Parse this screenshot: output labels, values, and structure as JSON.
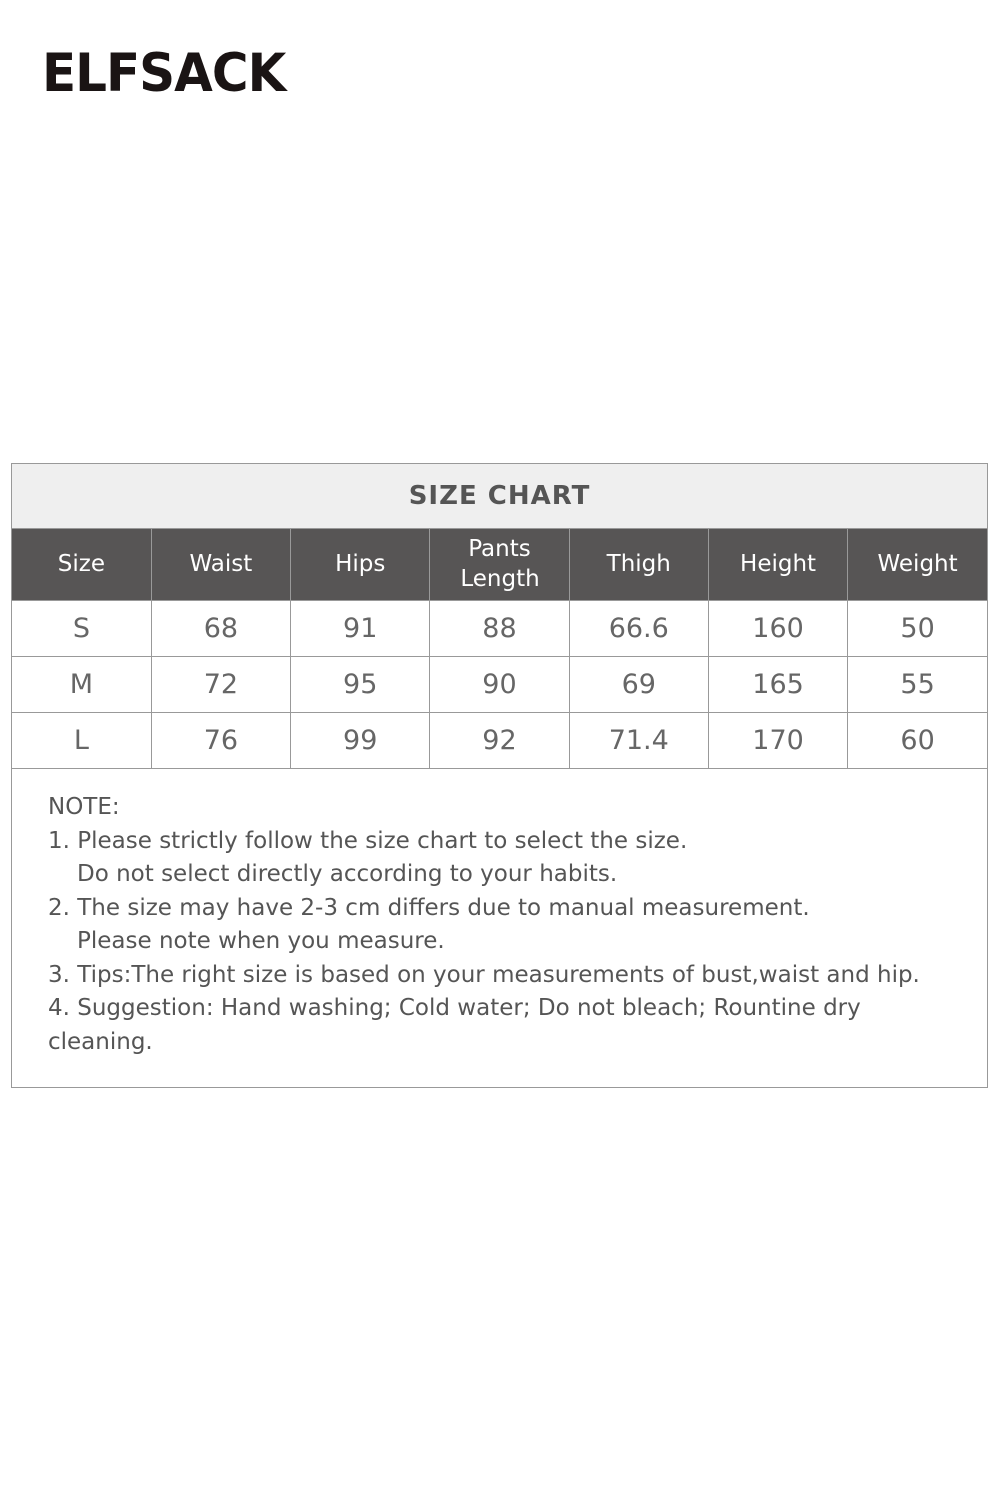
{
  "brand": {
    "logo": "ELFSACK"
  },
  "size_chart": {
    "title": "SIZE CHART",
    "headers": [
      "Size",
      "Waist",
      "Hips",
      "Pants Length",
      "Thigh",
      "Height",
      "Weight"
    ],
    "rows": [
      [
        "S",
        "68",
        "91",
        "88",
        "66.6",
        "160",
        "50"
      ],
      [
        "M",
        "72",
        "95",
        "90",
        "69",
        "165",
        "55"
      ],
      [
        "L",
        "76",
        "99",
        "92",
        "71.4",
        "170",
        "60"
      ]
    ],
    "colors": {
      "header_bg": "#575555",
      "title_bg": "#efefef",
      "border": "#999999"
    }
  },
  "notes": {
    "heading": "NOTE:",
    "lines": [
      "1. Please strictly follow the size chart to select the size.",
      "Do not select directly according to your habits.",
      "2. The size may have 2-3 cm differs due to manual measurement.",
      "Please note when you measure.",
      "3. Tips:The right size is based on your measurements of bust,waist and hip.",
      "4. Suggestion: Hand washing; Cold water; Do not bleach; Rountine dry cleaning."
    ]
  }
}
